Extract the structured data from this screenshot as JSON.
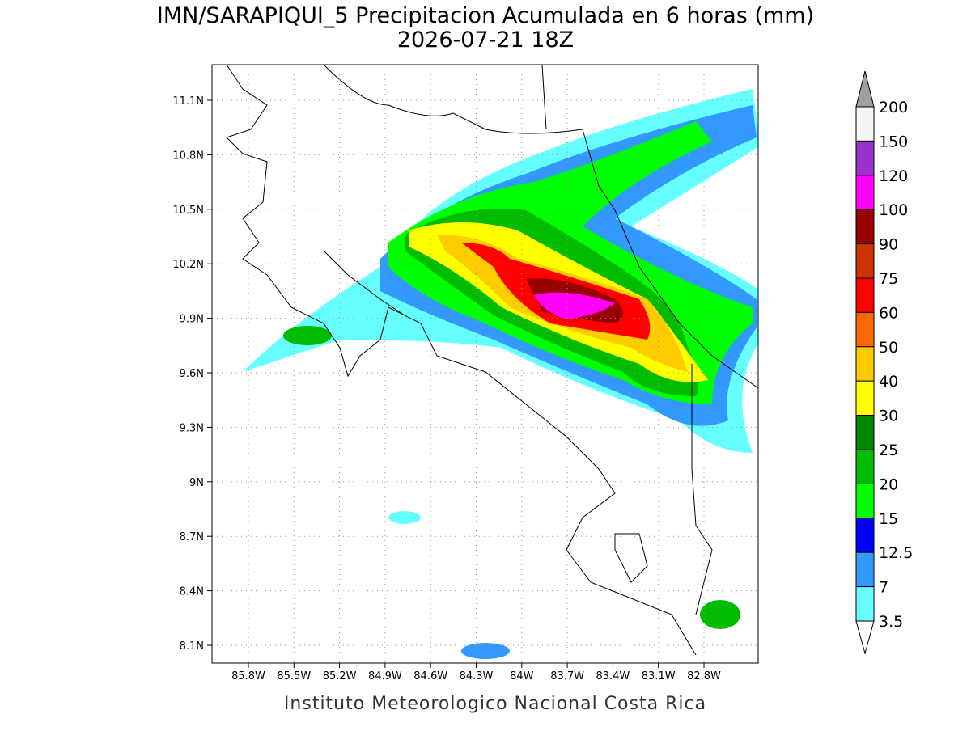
{
  "header": {
    "title": "IMN/SARAPIQUI_5 Precipitacion Acumulada en 6 horas (mm)",
    "subtitle": "2026-07-21 18Z"
  },
  "map": {
    "lat_labels": [
      "11.1N",
      "10.8N",
      "10.5N",
      "10.2N",
      "9.9N",
      "9.6N",
      "9.3N",
      "9N",
      "8.7N",
      "8.4N",
      "8.1N"
    ],
    "lon_labels": [
      "85.8W",
      "85.5W",
      "85.2W",
      "84.9W",
      "84.6W",
      "84.3W",
      "84W",
      "83.7W",
      "83.4W",
      "83.1W",
      "82.8W"
    ]
  },
  "colorbar": {
    "levels": [
      "200",
      "150",
      "120",
      "100",
      "90",
      "75",
      "60",
      "50",
      "40",
      "30",
      "25",
      "20",
      "15",
      "12.5",
      "7",
      "3.5"
    ],
    "colors": [
      "#a0a0a0",
      "#f5f5f5",
      "#9933cc",
      "#ff00ff",
      "#990000",
      "#cc3300",
      "#ff0000",
      "#ff6600",
      "#ffcc00",
      "#ffff00",
      "#008800",
      "#00bb00",
      "#00ff00",
      "#0000ff",
      "#3399ff",
      "#66ffff",
      "#ffffff"
    ]
  },
  "footer": "Instituto Meteorologico Nacional Costa Rica"
}
